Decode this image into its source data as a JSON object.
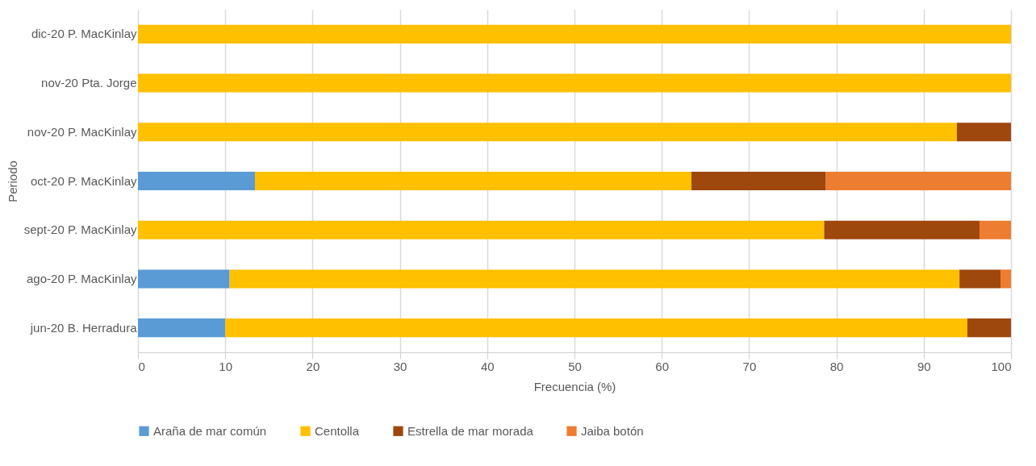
{
  "chart_data": {
    "type": "bar",
    "orientation": "horizontal",
    "stacked": true,
    "categories": [
      "dic-20\nP. MacKinlay",
      "nov-20\nPta. Jorge",
      "nov-20\nP. MacKinlay",
      "oct-20\nP. MacKinlay",
      "sept-20\nP. MacKinlay",
      "ago-20\nP. MacKinlay",
      "jun-20\nB. Herradura"
    ],
    "series": [
      {
        "name": "Araña de mar común",
        "color": "#5b9bd5",
        "values": [
          null,
          null,
          null,
          13.4,
          null,
          10.5,
          10
        ]
      },
      {
        "name": "Centolla",
        "color": "#ffc000",
        "values": [
          100,
          100,
          93.8,
          50,
          78.6,
          83.6,
          85
        ]
      },
      {
        "name": "Estrella de mar morada",
        "color": "#9e480e",
        "values": [
          null,
          null,
          6.2,
          15.4,
          17.8,
          4.7,
          5
        ]
      },
      {
        "name": "Jaiba botón",
        "color": "#ed7d31",
        "values": [
          null,
          null,
          null,
          21.2,
          3.6,
          1.2,
          null
        ]
      }
    ],
    "xlabel": "Frecuencia (%)",
    "ylabel": "Periodo",
    "xlim": [
      0,
      100
    ],
    "xticks": [
      0,
      10,
      20,
      30,
      40,
      50,
      60,
      70,
      80,
      90,
      100
    ],
    "grid": "x",
    "legend": "bottom"
  }
}
